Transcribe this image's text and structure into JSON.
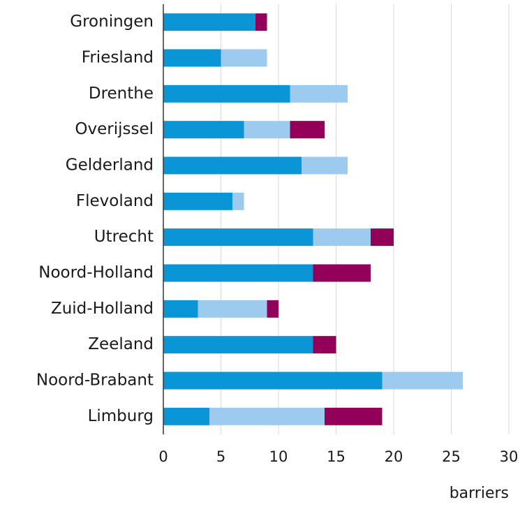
{
  "chart_data": {
    "type": "stacked-barh",
    "categories": [
      "Groningen",
      "Friesland",
      "Drenthe",
      "Overijssel",
      "Gelderland",
      "Flevoland",
      "Utrecht",
      "Noord-Holland",
      "Zuid-Holland",
      "Zeeland",
      "Noord-Brabant",
      "Limburg"
    ],
    "series": [
      {
        "color": "#0a96d6",
        "values": [
          8,
          5,
          11,
          7,
          12,
          6,
          13,
          13,
          3,
          13,
          19,
          4
        ]
      },
      {
        "color": "#9dcbf0",
        "values": [
          0,
          4,
          5,
          4,
          4,
          1,
          5,
          0,
          6,
          0,
          7,
          10
        ]
      },
      {
        "color": "#920059",
        "values": [
          1,
          0,
          0,
          3,
          0,
          0,
          2,
          5,
          1,
          2,
          0,
          5
        ]
      }
    ],
    "xlabel": "barriers",
    "xlim": [
      0,
      30
    ],
    "xticks": [
      0,
      5,
      10,
      15,
      20,
      25,
      30
    ],
    "grid": true
  }
}
